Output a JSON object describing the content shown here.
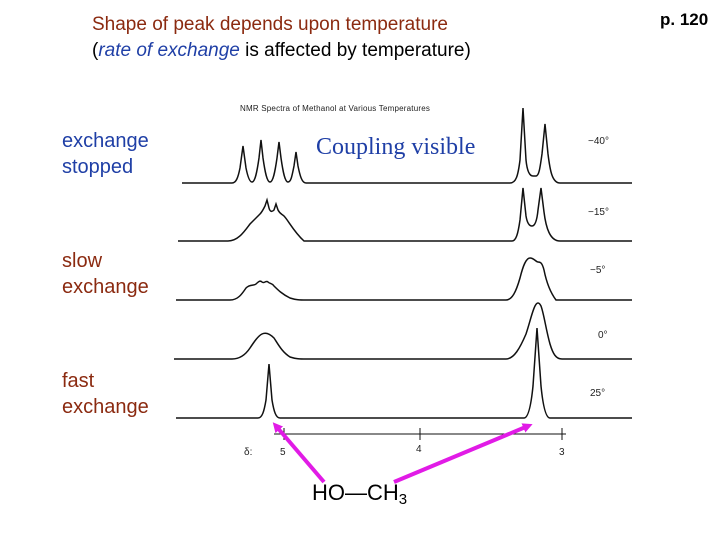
{
  "title": {
    "line1": "Shape of peak depends upon temperature",
    "line2_open": "(",
    "line2_emph": "rate of exchange",
    "line2_rest": " is affected by temperature)"
  },
  "page_number": "p. 120",
  "labels": {
    "stopped_1": "exchange",
    "stopped_2": "stopped",
    "slow_1": "slow",
    "slow_2": "exchange",
    "fast_1": "fast",
    "fast_2": "exchange"
  },
  "coupling_text": "Coupling visible",
  "spectrum": {
    "title": "NMR Spectra of Methanol at Various Temperatures",
    "temperatures": [
      "−40°",
      "−15°",
      "−5°",
      "0°",
      "25°"
    ],
    "axis_symbol": "δ:",
    "axis_ticks": [
      "5",
      "4",
      "3"
    ]
  },
  "formula": {
    "part1": "HO—CH",
    "sub": "3"
  },
  "colors": {
    "blue": "#1f3fa6",
    "brown": "#8b2a10",
    "arrow": "#e11be6"
  }
}
